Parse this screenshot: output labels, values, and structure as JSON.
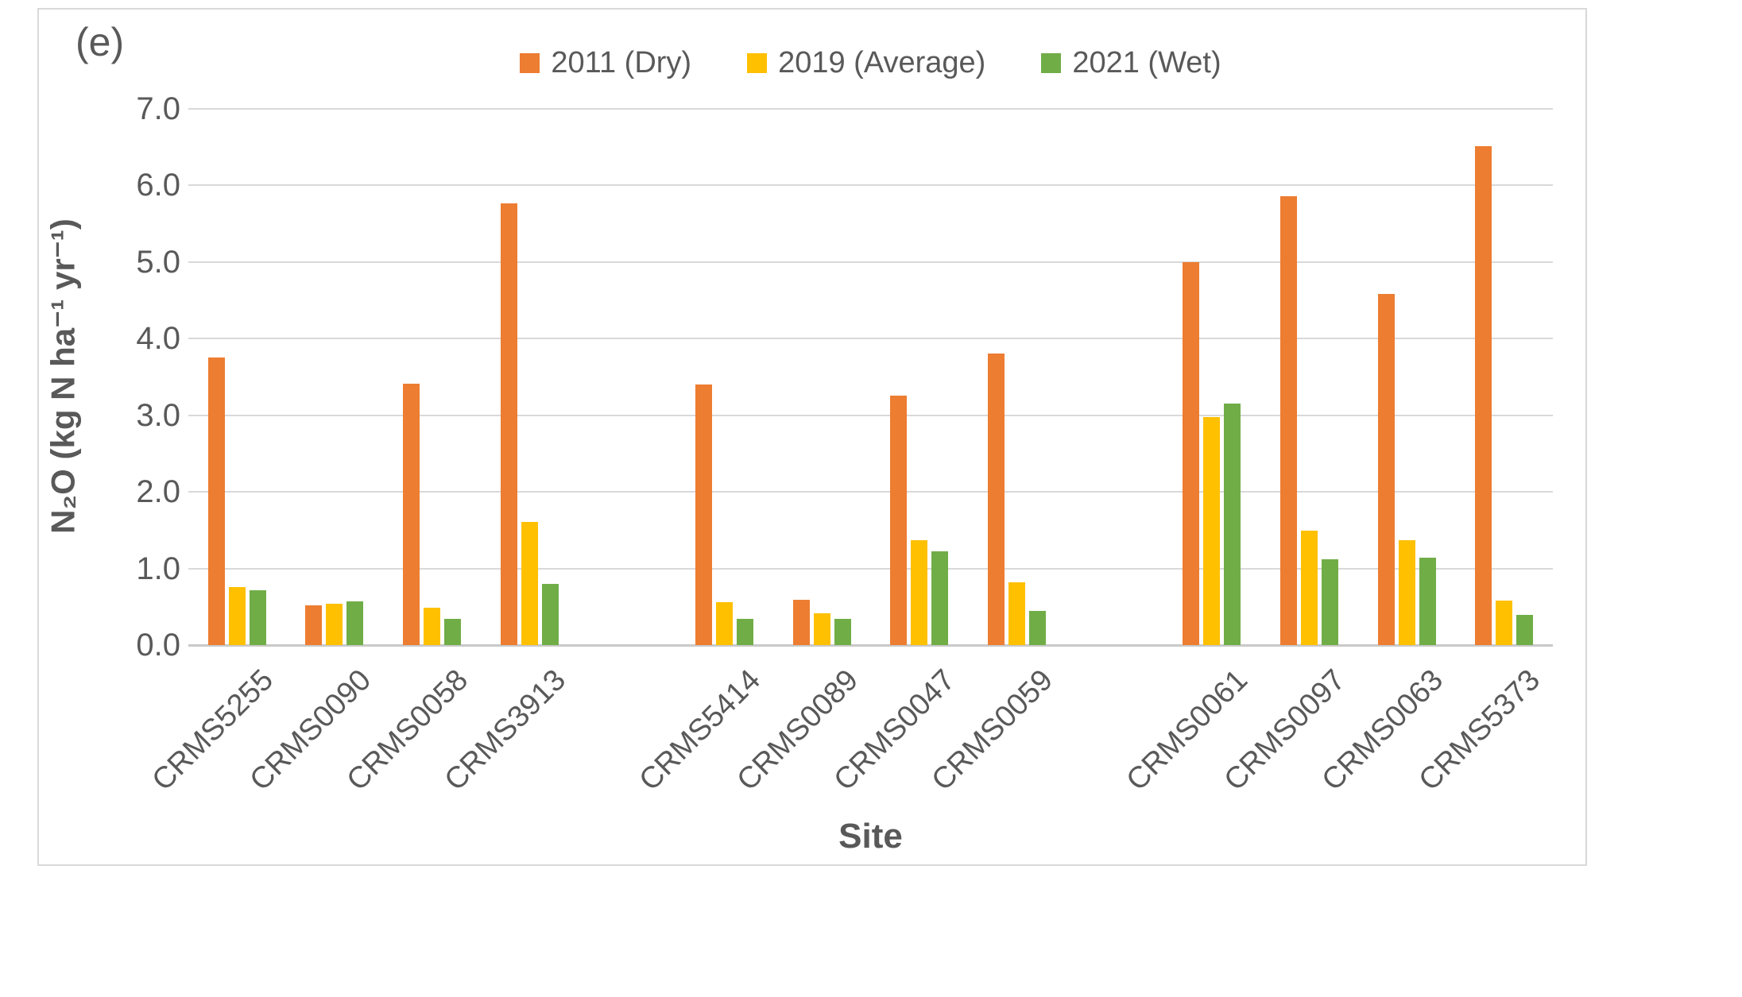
{
  "figure": {
    "panel_label": "(e)"
  },
  "colors": {
    "text": "#595959",
    "grid": "#D9D9D9",
    "border": "#D9D9D9",
    "background": "#FFFFFF",
    "series_2011": "#ED7D31",
    "series_2019": "#FFC000",
    "series_2021": "#70AD47"
  },
  "chart_data": {
    "type": "bar",
    "title": "",
    "xlabel": "Site",
    "ylabel": "N₂O (kg N ha⁻¹ yr⁻¹)",
    "ylim": [
      0,
      7
    ],
    "ytick_labels": [
      "0.0",
      "1.0",
      "2.0",
      "3.0",
      "4.0",
      "5.0",
      "6.0",
      "7.0"
    ],
    "grid": true,
    "legend_position": "top-center",
    "categories": [
      "CRMS5255",
      "CRMS0090",
      "CRMS0058",
      "CRMS3913",
      "CRMS5414",
      "CRMS0089",
      "CRMS0047",
      "CRMS0059",
      "CRMS0061",
      "CRMS0097",
      "CRMS0063",
      "CRMS5373"
    ],
    "site_groups": [
      [
        "CRMS5255",
        "CRMS0090",
        "CRMS0058",
        "CRMS3913"
      ],
      [
        "CRMS5414",
        "CRMS0089",
        "CRMS0047",
        "CRMS0059"
      ],
      [
        "CRMS0061",
        "CRMS0097",
        "CRMS0063",
        "CRMS5373"
      ]
    ],
    "series": [
      {
        "name": "2011 (Dry)",
        "color": "#ED7D31",
        "values": [
          3.75,
          0.52,
          3.41,
          5.77,
          3.4,
          0.59,
          3.26,
          3.81,
          5.0,
          5.86,
          4.58,
          6.51
        ]
      },
      {
        "name": "2019 (Average)",
        "color": "#FFC000",
        "values": [
          0.76,
          0.54,
          0.49,
          1.61,
          0.56,
          0.41,
          1.37,
          0.82,
          2.98,
          1.49,
          1.37,
          0.58
        ]
      },
      {
        "name": "2021 (Wet)",
        "color": "#70AD47",
        "values": [
          0.72,
          0.57,
          0.34,
          0.8,
          0.34,
          0.34,
          1.22,
          0.45,
          3.15,
          1.12,
          1.14,
          0.39
        ]
      }
    ]
  }
}
